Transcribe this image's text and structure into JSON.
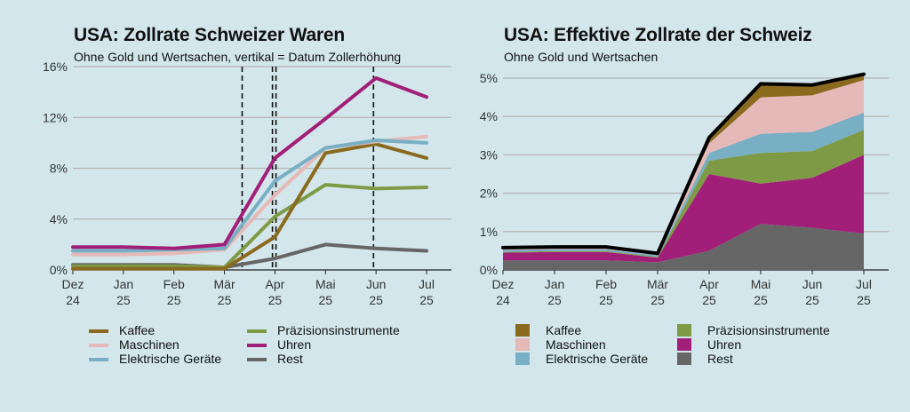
{
  "colors": {
    "Kaffee": "#8a6a1e",
    "Maschinen": "#e5b9b7",
    "Elektrische Geräte": "#78afc4",
    "Präzisionsinstrumente": "#7e9a44",
    "Uhren": "#a21f79",
    "Rest": "#666666",
    "total": "#000000",
    "vline": "#111111",
    "grid": "#b5b5b5"
  },
  "chart_data": [
    {
      "type": "line",
      "title": "USA: Zollrate Schweizer Waren",
      "subtitle": "Ohne Gold und Wertsachen, vertikal = Datum Zollerhöhung",
      "categories": [
        "Dez\n24",
        "Jan\n25",
        "Feb\n25",
        "Mär\n25",
        "Apr\n25",
        "Mai\n25",
        "Jun\n25",
        "Jul\n25"
      ],
      "ylim": [
        0,
        16
      ],
      "yticks": [
        0,
        4,
        8,
        12,
        16
      ],
      "ytick_labels": [
        "0%",
        "4%",
        "8%",
        "12%",
        "16%"
      ],
      "grid": true,
      "vlines": [
        3.35,
        3.95,
        4.02,
        5.95
      ],
      "series": [
        {
          "name": "Kaffee",
          "x": [
            0,
            1,
            2,
            3,
            4,
            5,
            6,
            7
          ],
          "values": [
            0.1,
            0.1,
            0.1,
            0.1,
            2.6,
            9.2,
            9.9,
            8.8
          ]
        },
        {
          "name": "Maschinen",
          "x": [
            0,
            1,
            2,
            3,
            4,
            5,
            6,
            7
          ],
          "values": [
            1.2,
            1.2,
            1.3,
            1.6,
            5.9,
            9.6,
            10.1,
            10.5
          ]
        },
        {
          "name": "Elektrische Geräte",
          "x": [
            0,
            1,
            2,
            3,
            4,
            5,
            6,
            7
          ],
          "values": [
            1.5,
            1.5,
            1.6,
            1.7,
            7.0,
            9.6,
            10.2,
            10.0
          ]
        },
        {
          "name": "Präzisionsinstrumente",
          "x": [
            0,
            1,
            2,
            3,
            4,
            5,
            6,
            7
          ],
          "values": [
            0.3,
            0.3,
            0.3,
            0.2,
            4.2,
            6.7,
            6.4,
            6.5
          ]
        },
        {
          "name": "Uhren",
          "x": [
            0,
            1,
            2,
            3,
            4,
            5,
            6,
            7
          ],
          "values": [
            1.8,
            1.8,
            1.7,
            2.0,
            8.8,
            11.9,
            15.1,
            13.6
          ]
        },
        {
          "name": "Rest",
          "x": [
            0,
            1,
            2,
            3,
            4,
            5,
            6,
            7
          ],
          "values": [
            0.4,
            0.4,
            0.4,
            0.2,
            0.9,
            2.0,
            1.7,
            1.5
          ]
        }
      ],
      "legend": [
        "Kaffee",
        "Maschinen",
        "Elektrische Geräte",
        "Präzisionsinstrumente",
        "Uhren",
        "Rest"
      ],
      "legend_position": "bottom"
    },
    {
      "type": "area",
      "title": "USA: Effektive Zollrate der Schweiz",
      "subtitle": "Ohne Gold und Wertsachen",
      "categories": [
        "Dez\n24",
        "Jan\n25",
        "Feb\n25",
        "Mär\n25",
        "Apr\n25",
        "Mai\n25",
        "Jun\n25",
        "Jul\n25"
      ],
      "ylim": [
        0,
        5.3
      ],
      "yticks": [
        0,
        1,
        2,
        3,
        4,
        5
      ],
      "ytick_labels": [
        "0%",
        "1%",
        "2%",
        "3%",
        "4%",
        "5%"
      ],
      "grid": true,
      "stacked": true,
      "series": [
        {
          "name": "Rest",
          "values": [
            0.25,
            0.25,
            0.25,
            0.2,
            0.5,
            1.2,
            1.1,
            0.95
          ]
        },
        {
          "name": "Uhren",
          "values": [
            0.2,
            0.22,
            0.22,
            0.12,
            2.0,
            1.05,
            1.3,
            2.05
          ]
        },
        {
          "name": "Präzisionsinstrumente",
          "values": [
            0.02,
            0.02,
            0.02,
            0.02,
            0.35,
            0.8,
            0.7,
            0.65
          ]
        },
        {
          "name": "Elektrische Geräte",
          "values": [
            0.05,
            0.05,
            0.05,
            0.04,
            0.2,
            0.5,
            0.5,
            0.45
          ]
        },
        {
          "name": "Maschinen",
          "values": [
            0.05,
            0.05,
            0.05,
            0.04,
            0.25,
            0.95,
            0.95,
            0.85
          ]
        },
        {
          "name": "Kaffee",
          "values": [
            0.01,
            0.01,
            0.01,
            0.01,
            0.15,
            0.35,
            0.27,
            0.15
          ]
        }
      ],
      "total": [
        0.58,
        0.6,
        0.6,
        0.43,
        3.45,
        4.85,
        4.82,
        5.1
      ],
      "legend": [
        "Kaffee",
        "Maschinen",
        "Elektrische Geräte",
        "Präzisionsinstrumente",
        "Uhren",
        "Rest"
      ],
      "legend_position": "bottom"
    }
  ]
}
